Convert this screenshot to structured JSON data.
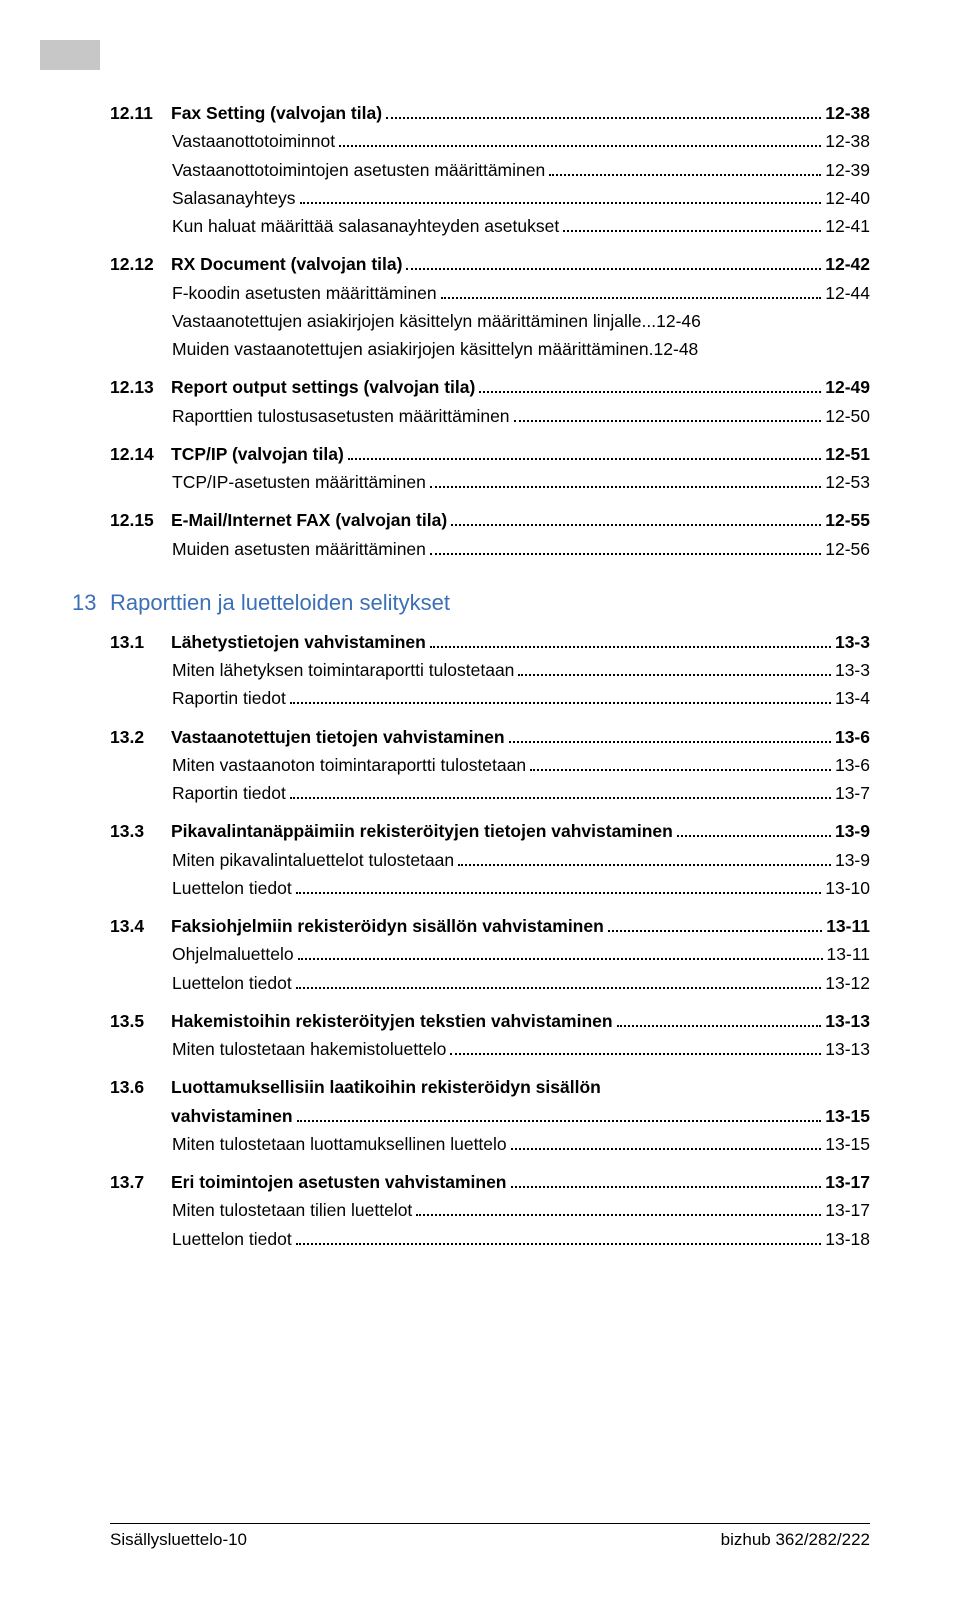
{
  "tocA": [
    {
      "n": "12.11",
      "t": "Fax Setting (valvojan tila)",
      "p": "12-38",
      "b": 1
    },
    {
      "sub": 1,
      "t": "Vastaanottotoiminnot",
      "p": "12-38"
    },
    {
      "sub": 1,
      "t": "Vastaanottotoimintojen asetusten määrittäminen",
      "p": "12-39"
    },
    {
      "sub": 1,
      "t": "Salasanayhteys",
      "p": "12-40"
    },
    {
      "sub": 1,
      "t": "Kun haluat määrittää salasanayhteyden asetukset",
      "p": "12-41"
    },
    {
      "n": "12.12",
      "t": "RX Document (valvojan tila)",
      "p": "12-42",
      "b": 1
    },
    {
      "sub": 1,
      "t": "F-koodin asetusten määrittäminen",
      "p": "12-44"
    },
    {
      "sub": 1,
      "t": "Vastaanotettujen asiakirjojen käsittelyn määrittäminen linjalle",
      "p": "12-46",
      "nodots": 1
    },
    {
      "sub": 1,
      "t": "Muiden vastaanotettujen asiakirjojen käsittelyn määrittäminen",
      "p": "12-48",
      "nodots": 1,
      "nodotsPeriod": 1
    },
    {
      "n": "12.13",
      "t": "Report output settings (valvojan tila)",
      "p": "12-49",
      "b": 1
    },
    {
      "sub": 1,
      "t": "Raporttien tulostusasetusten määrittäminen",
      "p": "12-50"
    },
    {
      "n": "12.14",
      "t": "TCP/IP (valvojan tila)",
      "p": "12-51",
      "b": 1
    },
    {
      "sub": 1,
      "t": "TCP/IP-asetusten määrittäminen",
      "p": "12-53"
    },
    {
      "n": "12.15",
      "t": "E-Mail/Internet FAX (valvojan tila)",
      "p": "12-55",
      "b": 1
    },
    {
      "sub": 1,
      "t": "Muiden asetusten määrittäminen",
      "p": "12-56"
    }
  ],
  "chapter": {
    "n": "13",
    "t": "Raporttien ja luetteloiden selitykset"
  },
  "tocB": [
    {
      "n": "13.1",
      "t": "Lähetystietojen vahvistaminen",
      "p": "13-3",
      "b": 1
    },
    {
      "sub": 1,
      "t": "Miten lähetyksen toimintaraportti tulostetaan",
      "p": "13-3"
    },
    {
      "sub": 1,
      "t": "Raportin tiedot",
      "p": "13-4"
    },
    {
      "n": "13.2",
      "t": "Vastaanotettujen tietojen vahvistaminen",
      "p": "13-6",
      "b": 1
    },
    {
      "sub": 1,
      "t": "Miten vastaanoton toimintaraportti tulostetaan",
      "p": "13-6"
    },
    {
      "sub": 1,
      "t": "Raportin tiedot",
      "p": "13-7"
    },
    {
      "n": "13.3",
      "t": "Pikavalintanäppäimiin rekisteröityjen tietojen vahvistaminen",
      "p": "13-9",
      "b": 1,
      "tight": 1
    },
    {
      "sub": 1,
      "t": "Miten pikavalintaluettelot tulostetaan",
      "p": "13-9"
    },
    {
      "sub": 1,
      "t": "Luettelon tiedot",
      "p": "13-10"
    },
    {
      "n": "13.4",
      "t": "Faksiohjelmiin rekisteröidyn sisällön vahvistaminen",
      "p": "13-11",
      "b": 1
    },
    {
      "sub": 1,
      "t": "Ohjelmaluettelo",
      "p": "13-11"
    },
    {
      "sub": 1,
      "t": "Luettelon tiedot",
      "p": "13-12"
    },
    {
      "n": "13.5",
      "t": "Hakemistoihin rekisteröityjen tekstien vahvistaminen",
      "p": "13-13",
      "b": 1
    },
    {
      "sub": 1,
      "t": "Miten tulostetaan hakemistoluettelo",
      "p": "13-13"
    },
    {
      "n": "13.6",
      "t": "Luottamuksellisiin laatikoihin rekisteröidyn sisällön",
      "b": 1,
      "nopage": 1
    },
    {
      "contnum": 1,
      "t": "vahvistaminen",
      "p": "13-15",
      "b": 1
    },
    {
      "sub": 1,
      "t": "Miten tulostetaan luottamuksellinen luettelo",
      "p": "13-15"
    },
    {
      "n": "13.7",
      "t": "Eri toimintojen asetusten vahvistaminen",
      "p": "13-17",
      "b": 1
    },
    {
      "sub": 1,
      "t": "Miten tulostetaan tilien luettelot",
      "p": "13-17"
    },
    {
      "sub": 1,
      "t": "Luettelon tiedot",
      "p": "13-18"
    }
  ],
  "footer": {
    "left": "Sisällysluettelo-10",
    "right": "bizhub 362/282/222"
  }
}
